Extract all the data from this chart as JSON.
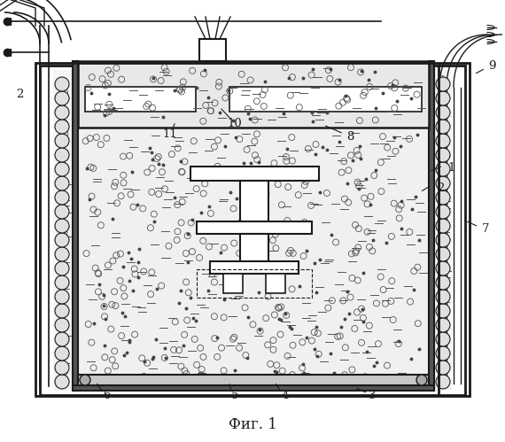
{
  "title": "Фиг. 1",
  "bg_color": "#ffffff",
  "lc": "#1a1a1a",
  "fig_width": 5.7,
  "fig_height": 4.99,
  "dpi": 100
}
